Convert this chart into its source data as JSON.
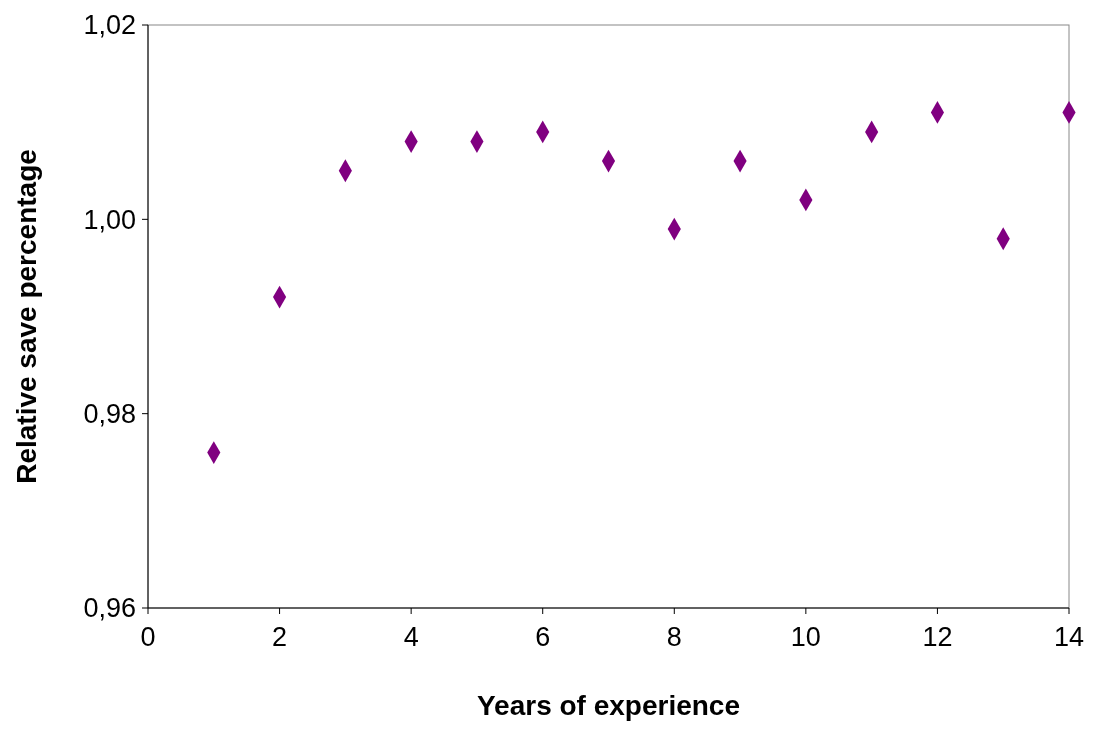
{
  "chart_data": {
    "type": "scatter",
    "xlabel": "Years of experience",
    "ylabel": "Relative save percentage",
    "x": [
      1,
      2,
      3,
      4,
      5,
      6,
      7,
      8,
      9,
      10,
      11,
      12,
      13,
      14
    ],
    "series": [
      {
        "color": "#800080",
        "values": [
          0.976,
          0.992,
          1.005,
          1.008,
          1.008,
          1.009,
          1.006,
          0.999,
          1.006,
          1.002,
          1.009,
          1.011,
          0.998,
          1.011
        ]
      }
    ],
    "xlim": [
      0,
      14
    ],
    "xticks": [
      0,
      2,
      4,
      6,
      8,
      10,
      12,
      14
    ],
    "ylim": [
      0.96,
      1.02
    ],
    "yticks": [
      {
        "value": 0.96,
        "label": "0,96"
      },
      {
        "value": 0.98,
        "label": "0,98"
      },
      {
        "value": 1.0,
        "label": "1,00"
      },
      {
        "value": 1.02,
        "label": "1,02"
      }
    ],
    "marker": "diamond"
  }
}
